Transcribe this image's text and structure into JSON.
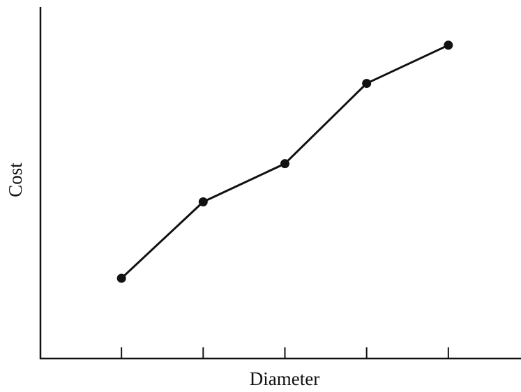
{
  "chart_data": {
    "type": "line",
    "title": "",
    "xlabel": "Diameter",
    "ylabel": "Cost",
    "x": [
      1,
      2,
      3,
      4,
      5
    ],
    "y": [
      0.8,
      2.8,
      3.8,
      5.9,
      6.9
    ],
    "xlim": [
      0,
      6
    ],
    "ylim": [
      -1.3,
      7.9
    ],
    "x_tick_labels": false,
    "y_ticks": false,
    "grid": false,
    "legend": "none",
    "series": [
      {
        "values": [
          0.8,
          2.8,
          3.8,
          5.9,
          6.9
        ]
      }
    ],
    "colors": {
      "line": "#111111",
      "marker": "#111111",
      "axis": "#111111"
    }
  }
}
